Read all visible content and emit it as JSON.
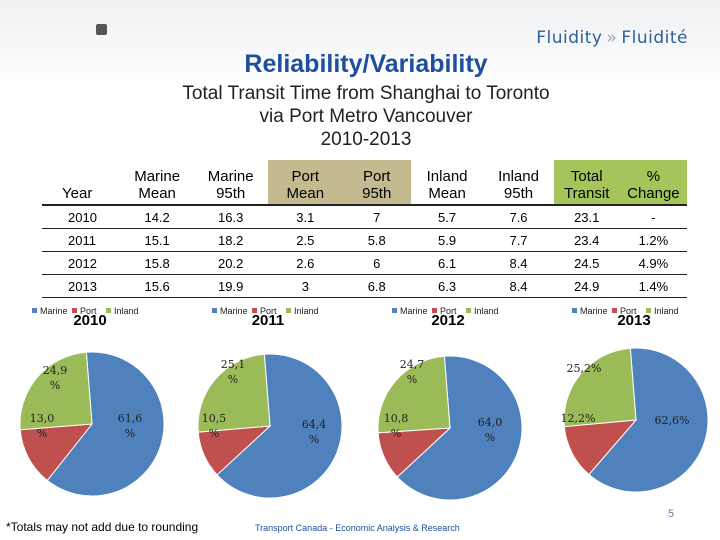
{
  "brand": {
    "left": "Fluidity",
    "right": "Fluidité"
  },
  "title": "Reliability/Variability",
  "subtitle": {
    "line1": "Total Transit Time from Shanghai to Toronto",
    "line2": "via Port Metro Vancouver",
    "line3": "2010-2013"
  },
  "colors": {
    "marine": "#4f81bd",
    "port": "#c0504d",
    "inland": "#9bbb59",
    "header_tan": "#c3ba8f",
    "header_green": "#a5c45a",
    "title_blue": "#1f4e9c"
  },
  "table": {
    "headers": [
      {
        "l1": "",
        "l2": "Year"
      },
      {
        "l1": "Marine",
        "l2": "Mean"
      },
      {
        "l1": "Marine",
        "l2": "95th"
      },
      {
        "l1": "Port",
        "l2": "Mean"
      },
      {
        "l1": "Port",
        "l2": "95th"
      },
      {
        "l1": "Inland",
        "l2": "Mean"
      },
      {
        "l1": "Inland",
        "l2": "95th"
      },
      {
        "l1": "Total",
        "l2": "Transit"
      },
      {
        "l1": "%",
        "l2": "Change"
      }
    ],
    "rows": [
      [
        "2010",
        "14.2",
        "16.3",
        "3.1",
        "7",
        "5.7",
        "7.6",
        "23.1",
        "-"
      ],
      [
        "2011",
        "15.1",
        "18.2",
        "2.5",
        "5.8",
        "5.9",
        "7.7",
        "23.4",
        "1.2%"
      ],
      [
        "2012",
        "15.8",
        "20.2",
        "2.6",
        "6",
        "6.1",
        "8.4",
        "24.5",
        "4.9%"
      ],
      [
        "2013",
        "15.6",
        "19.9",
        "3",
        "6.8",
        "6.3",
        "8.4",
        "24.9",
        "1.4%"
      ]
    ]
  },
  "legend": {
    "marine": "Marine",
    "port": "Port",
    "inland": "Inland"
  },
  "chart_data": [
    {
      "type": "pie",
      "title": "2010",
      "labels": [
        "Marine",
        "Port",
        "Inland"
      ],
      "values": [
        61.6,
        13.0,
        24.9
      ],
      "label_text": [
        "61,6",
        "13,0",
        "24,9"
      ]
    },
    {
      "type": "pie",
      "title": "2011",
      "labels": [
        "Marine",
        "Port",
        "Inland"
      ],
      "values": [
        64.4,
        10.5,
        25.1
      ],
      "label_text": [
        "64,4",
        "10,5",
        "25,1"
      ]
    },
    {
      "type": "pie",
      "title": "2012",
      "labels": [
        "Marine",
        "Port",
        "Inland"
      ],
      "values": [
        64.0,
        10.8,
        24.7
      ],
      "label_text": [
        "64,0",
        "10,8",
        "24,7"
      ]
    },
    {
      "type": "pie",
      "title": "2013",
      "labels": [
        "Marine",
        "Port",
        "Inland"
      ],
      "values": [
        62.6,
        12.2,
        25.2
      ],
      "label_text": [
        "62,6%",
        "12,2%",
        "25,2%"
      ]
    }
  ],
  "footnote": "*Totals may not add due to rounding",
  "source": "Transport Canada - Economic Analysis & Research",
  "page_number": "5"
}
